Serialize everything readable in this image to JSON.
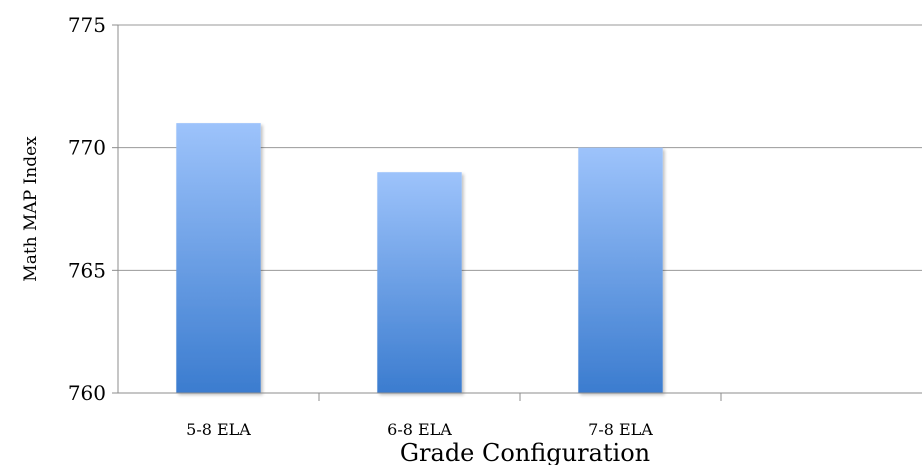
{
  "chart_data": {
    "type": "bar",
    "categories": [
      "5-8 ELA",
      "6-8 ELA",
      "7-8 ELA",
      ""
    ],
    "values": [
      771,
      769,
      770,
      null
    ],
    "xlabel": "Grade Configuration",
    "ylabel": "Math MAP Index",
    "ylim": [
      760,
      775
    ],
    "yticks": [
      760,
      765,
      770,
      775
    ],
    "grid": true,
    "bar_gradient": {
      "top": "#9dc3fb",
      "bottom": "#3b7ccf"
    },
    "grid_color": "#9a9a9a",
    "axis_color": "#8c8c8c"
  }
}
